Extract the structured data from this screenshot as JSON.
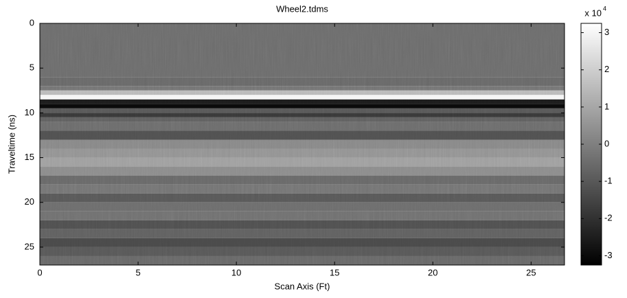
{
  "chart_data": {
    "type": "heatmap",
    "title": "Wheel2.tdms",
    "x_label": "Scan Axis (Ft)",
    "y_label": "Traveltime (ns)",
    "xlim": [
      0,
      26.7
    ],
    "ylim": [
      27,
      0
    ],
    "xticks": [
      0,
      5,
      10,
      15,
      20,
      25
    ],
    "yticks": [
      0,
      5,
      10,
      15,
      20,
      25
    ],
    "y_bins": [
      0,
      6,
      7,
      7.5,
      8,
      8.5,
      9,
      9.5,
      10,
      10.5,
      11,
      12,
      13,
      14,
      15,
      16,
      17,
      18,
      19,
      20,
      21,
      22,
      23,
      24,
      25,
      26,
      27
    ],
    "values": [
      -0.5,
      -0.6,
      -0.3,
      1.5,
      3.0,
      -2.5,
      -3.0,
      -1.0,
      -1.8,
      -0.8,
      -0.5,
      -1.2,
      0.2,
      0.5,
      0.8,
      0.3,
      -0.6,
      -0.3,
      -1.0,
      -0.5,
      -0.4,
      -1.2,
      -0.8,
      -1.4,
      -1.0,
      -0.6
    ],
    "colormap": "gray",
    "clim": [
      -3.25,
      3.25
    ],
    "cticks": [
      -3,
      -2,
      -1,
      0,
      1,
      2,
      3
    ],
    "colorbar_scale": {
      "base": "x 10",
      "exponent": "4"
    }
  }
}
